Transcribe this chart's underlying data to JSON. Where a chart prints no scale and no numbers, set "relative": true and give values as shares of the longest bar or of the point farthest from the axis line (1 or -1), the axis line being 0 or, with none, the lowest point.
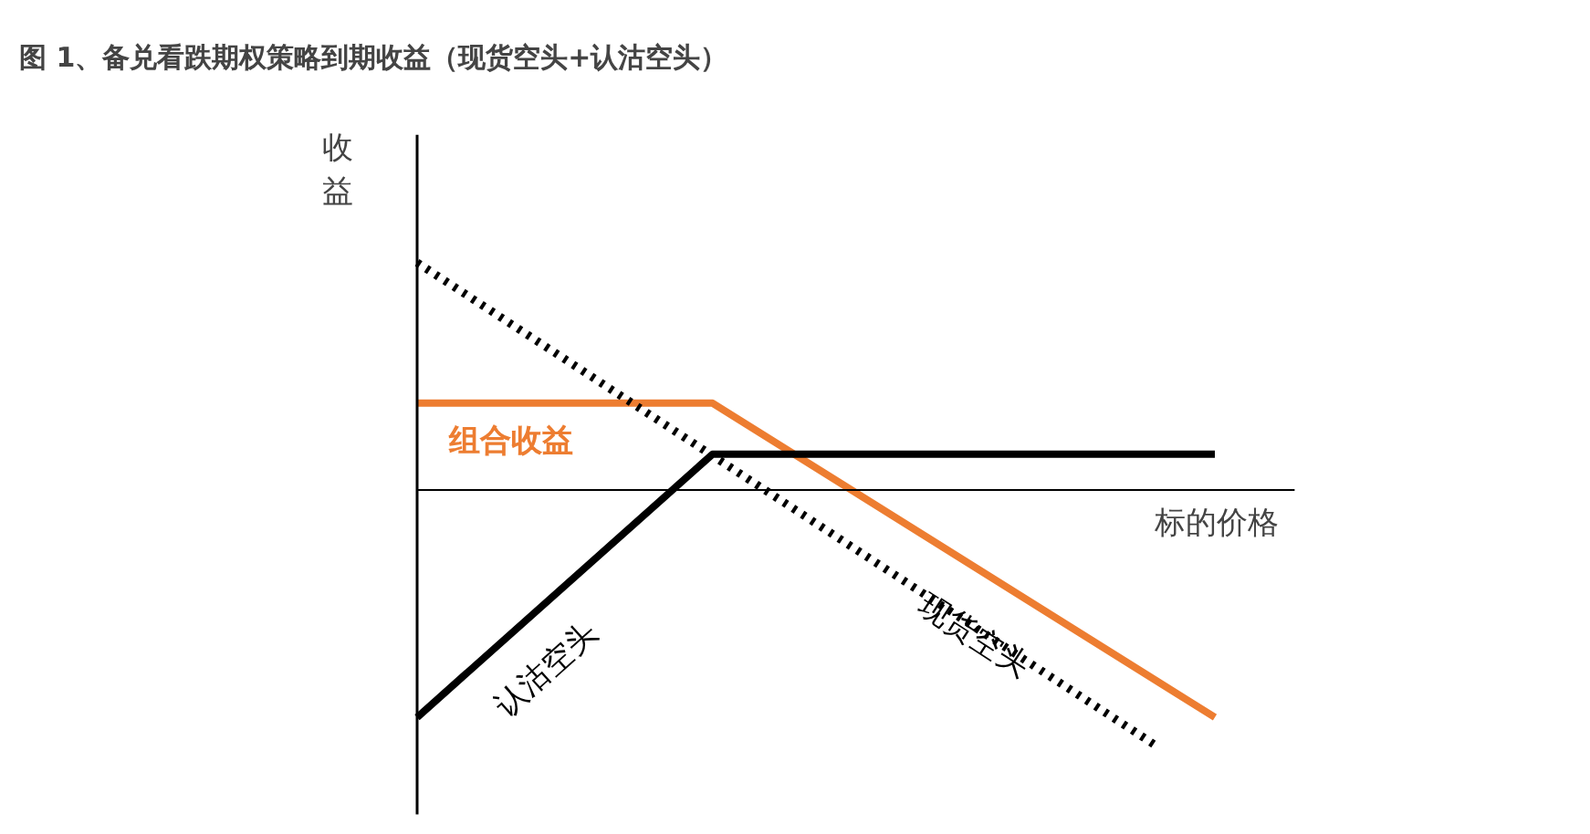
{
  "chart_data": {
    "type": "line",
    "title": "图 1、备兑看跌期权策略到期收益（现货空头+认沽空头）",
    "xlabel": "标的价格",
    "ylabel": "收益",
    "relative": true,
    "categories": [
      null,
      null,
      null,
      null,
      null,
      null,
      null,
      null,
      null,
      null,
      null,
      null,
      null,
      null,
      null,
      null,
      null,
      null,
      null,
      null,
      null,
      null,
      null,
      null,
      null,
      null,
      null,
      null
    ],
    "series": [
      {
        "name": "组合收益",
        "color": "#ed7d31",
        "values": [
          0.34,
          null,
          null,
          null,
          null,
          null,
          null,
          null,
          null,
          null,
          0.34,
          null,
          null,
          null,
          null,
          null,
          null,
          null,
          null,
          null,
          null,
          null,
          null,
          null,
          null,
          null,
          null,
          -0.89
        ]
      },
      {
        "name": "认沽空头",
        "color": "#000000",
        "values": [
          -0.89,
          null,
          null,
          null,
          null,
          null,
          null,
          null,
          null,
          null,
          0.14,
          null,
          null,
          null,
          null,
          null,
          null,
          null,
          null,
          null,
          null,
          null,
          null,
          null,
          null,
          null,
          null,
          0.14
        ]
      },
      {
        "name": "现货空头",
        "color": "#000000",
        "line_style": "dotted",
        "values": [
          0.89,
          null,
          null,
          null,
          null,
          null,
          null,
          null,
          null,
          null,
          null,
          null,
          null,
          null,
          null,
          null,
          null,
          null,
          null,
          null,
          null,
          null,
          null,
          null,
          null,
          -1,
          null,
          null
        ]
      }
    ]
  }
}
